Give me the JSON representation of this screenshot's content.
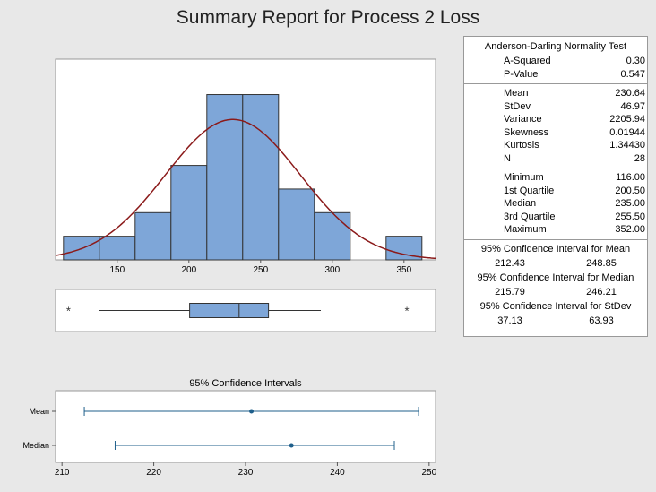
{
  "title": "Summary Report for Process 2 Loss",
  "chart_data": [
    {
      "type": "bar",
      "subtype": "histogram",
      "bins": [
        {
          "start": 112.5,
          "end": 137.5,
          "count": 1
        },
        {
          "start": 137.5,
          "end": 162.5,
          "count": 1
        },
        {
          "start": 162.5,
          "end": 187.5,
          "count": 2
        },
        {
          "start": 187.5,
          "end": 212.5,
          "count": 4
        },
        {
          "start": 212.5,
          "end": 237.5,
          "count": 7
        },
        {
          "start": 237.5,
          "end": 262.5,
          "count": 7
        },
        {
          "start": 262.5,
          "end": 287.5,
          "count": 3
        },
        {
          "start": 287.5,
          "end": 312.5,
          "count": 2
        },
        {
          "start": 312.5,
          "end": 337.5,
          "count": 0
        },
        {
          "start": 337.5,
          "end": 362.5,
          "count": 1
        }
      ],
      "fit_curve": {
        "distribution": "normal",
        "mean": 230.64,
        "stdev": 46.97
      },
      "xticks": [
        150,
        200,
        250,
        300,
        350
      ],
      "xlim": [
        107,
        372
      ],
      "ylim": [
        0,
        8.5
      ],
      "bar_color": "#7ea6d8",
      "curve_color": "#8b1a1a"
    },
    {
      "type": "boxplot",
      "q1": 200.5,
      "median": 235.0,
      "q3": 255.5,
      "whisker_low": 137,
      "whisker_high": 292,
      "outliers": [
        116,
        352
      ],
      "xlim": [
        107,
        372
      ]
    },
    {
      "type": "scatter",
      "subtype": "interval",
      "title": "95% Confidence Intervals",
      "categories": [
        "Mean",
        "Median"
      ],
      "intervals": [
        {
          "name": "Mean",
          "low": 212.43,
          "point": 230.64,
          "high": 248.85
        },
        {
          "name": "Median",
          "low": 215.79,
          "point": 235.0,
          "high": 246.21
        }
      ],
      "xticks": [
        210,
        220,
        230,
        240,
        250
      ],
      "xlim": [
        209.3,
        250.7
      ],
      "color": "#1f5f8b"
    }
  ],
  "stats": {
    "ad_header": "Anderson-Darling Normality Test",
    "ad_rows": [
      {
        "label": "A-Squared",
        "value": "0.30"
      },
      {
        "label": "P-Value",
        "value": "0.547"
      }
    ],
    "moments": [
      {
        "label": "Mean",
        "value": "230.64"
      },
      {
        "label": "StDev",
        "value": "46.97"
      },
      {
        "label": "Variance",
        "value": "2205.94"
      },
      {
        "label": "Skewness",
        "value": "0.01944"
      },
      {
        "label": "Kurtosis",
        "value": "1.34430"
      },
      {
        "label": "N",
        "value": "28"
      }
    ],
    "quantiles": [
      {
        "label": "Minimum",
        "value": "116.00"
      },
      {
        "label": "1st Quartile",
        "value": "200.50"
      },
      {
        "label": "Median",
        "value": "235.00"
      },
      {
        "label": "3rd Quartile",
        "value": "255.50"
      },
      {
        "label": "Maximum",
        "value": "352.00"
      }
    ],
    "ci_mean_header": "95% Confidence Interval for Mean",
    "ci_mean": [
      "212.43",
      "248.85"
    ],
    "ci_median_header": "95% Confidence Interval for Median",
    "ci_median": [
      "215.79",
      "246.21"
    ],
    "ci_stdev_header": "95% Confidence Interval for StDev",
    "ci_stdev": [
      "37.13",
      "63.93"
    ]
  }
}
